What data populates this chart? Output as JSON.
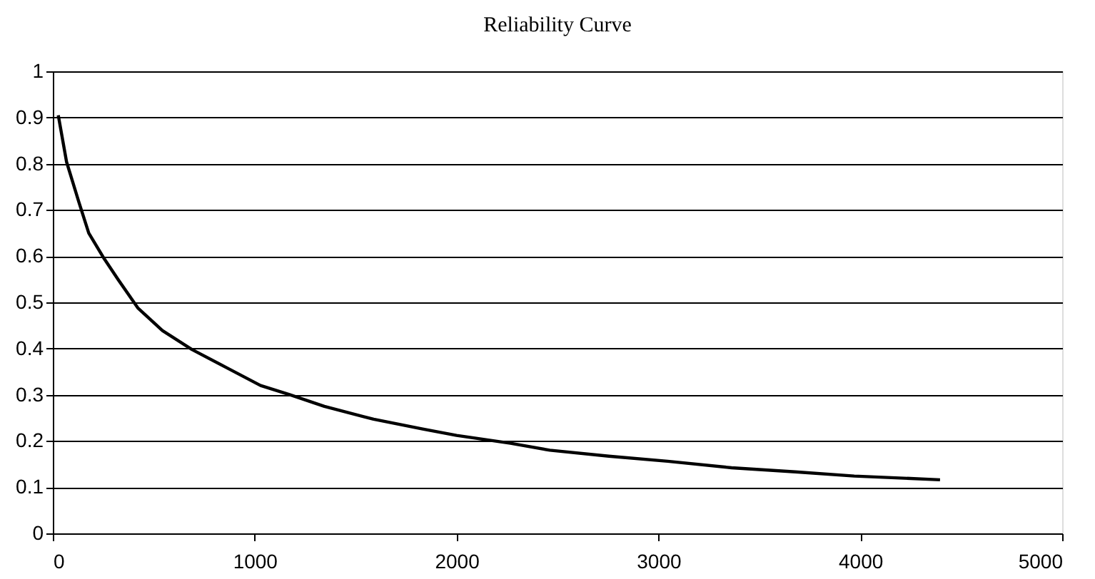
{
  "chart_data": {
    "type": "line",
    "title": "Reliability Curve",
    "x": [
      27,
      68,
      129,
      178,
      255,
      324,
      421,
      543,
      689,
      859,
      1029,
      1175,
      1345,
      1589,
      1832,
      2000,
      2267,
      2462,
      2754,
      3046,
      3362,
      3678,
      3970,
      4395
    ],
    "series": [
      {
        "color": "#000000",
        "values": [
          0.905,
          0.804,
          0.717,
          0.65,
          0.594,
          0.549,
          0.488,
          0.439,
          0.398,
          0.359,
          0.32,
          0.3,
          0.275,
          0.247,
          0.226,
          0.212,
          0.195,
          0.18,
          0.167,
          0.156,
          0.142,
          0.133,
          0.124,
          0.116
        ]
      }
    ],
    "xlim": [
      0,
      5000
    ],
    "xticks": [
      0,
      1000,
      2000,
      3000,
      4000,
      5000
    ],
    "ylim": [
      0,
      1
    ],
    "yticks": [
      0,
      0.1,
      0.2,
      0.3,
      0.4,
      0.5,
      0.6,
      0.7,
      0.8,
      0.9,
      1
    ],
    "grid": "y",
    "legend": false,
    "marker": "none",
    "line_style": "solid"
  }
}
